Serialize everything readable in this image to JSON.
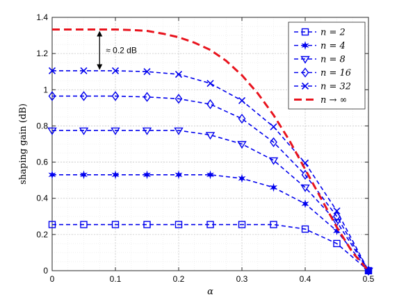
{
  "chart_data": {
    "type": "line",
    "xlabel": "α",
    "ylabel": "shaping gain (dB)",
    "xlim": [
      0,
      0.5
    ],
    "ylim": [
      0,
      1.4
    ],
    "xticks": [
      "0",
      "0.1",
      "0.2",
      "0.3",
      "0.4",
      "0.5"
    ],
    "yticks": [
      "0",
      "0.2",
      "0.4",
      "0.6",
      "0.8",
      "1",
      "1.2",
      "1.4"
    ],
    "grid": true,
    "legend_position": "top-right",
    "annotation": "≈ 0.2 dB",
    "series": [
      {
        "name": "n = 2",
        "color": "#0000ee",
        "marker": "square",
        "x": [
          0,
          0.05,
          0.1,
          0.15,
          0.2,
          0.25,
          0.3,
          0.35,
          0.4,
          0.45,
          0.5
        ],
        "y": [
          0.255,
          0.255,
          0.255,
          0.255,
          0.255,
          0.255,
          0.255,
          0.255,
          0.23,
          0.15,
          0.0
        ]
      },
      {
        "name": "n = 4",
        "color": "#0000ee",
        "marker": "star",
        "x": [
          0,
          0.05,
          0.1,
          0.15,
          0.2,
          0.25,
          0.3,
          0.35,
          0.4,
          0.45,
          0.5
        ],
        "y": [
          0.53,
          0.53,
          0.53,
          0.53,
          0.53,
          0.53,
          0.51,
          0.46,
          0.37,
          0.22,
          0.0
        ]
      },
      {
        "name": "n = 8",
        "color": "#0000ee",
        "marker": "triangle-down",
        "x": [
          0,
          0.05,
          0.1,
          0.15,
          0.2,
          0.25,
          0.3,
          0.35,
          0.4,
          0.45,
          0.5
        ],
        "y": [
          0.775,
          0.775,
          0.775,
          0.775,
          0.775,
          0.75,
          0.7,
          0.61,
          0.46,
          0.27,
          0.0
        ]
      },
      {
        "name": "n = 16",
        "color": "#0000ee",
        "marker": "diamond",
        "x": [
          0,
          0.05,
          0.1,
          0.15,
          0.2,
          0.25,
          0.3,
          0.35,
          0.4,
          0.45,
          0.5
        ],
        "y": [
          0.965,
          0.965,
          0.965,
          0.96,
          0.95,
          0.92,
          0.84,
          0.71,
          0.53,
          0.3,
          0.0
        ]
      },
      {
        "name": "n = 32",
        "color": "#0000ee",
        "marker": "x",
        "x": [
          0,
          0.05,
          0.1,
          0.15,
          0.2,
          0.25,
          0.3,
          0.35,
          0.4,
          0.45,
          0.5
        ],
        "y": [
          1.105,
          1.105,
          1.105,
          1.1,
          1.085,
          1.035,
          0.94,
          0.795,
          0.595,
          0.33,
          0.0
        ]
      },
      {
        "name": "n → ∞",
        "color": "#e8131d",
        "marker": "none",
        "dash": "thick",
        "x": [
          0,
          0.025,
          0.05,
          0.075,
          0.1,
          0.125,
          0.15,
          0.175,
          0.2,
          0.225,
          0.25,
          0.275,
          0.3,
          0.325,
          0.35,
          0.375,
          0.4,
          0.425,
          0.45,
          0.475,
          0.5
        ],
        "y": [
          1.333,
          1.333,
          1.333,
          1.333,
          1.333,
          1.33,
          1.325,
          1.31,
          1.29,
          1.26,
          1.22,
          1.16,
          1.08,
          0.98,
          0.86,
          0.72,
          0.56,
          0.4,
          0.24,
          0.1,
          0.0
        ]
      }
    ]
  }
}
